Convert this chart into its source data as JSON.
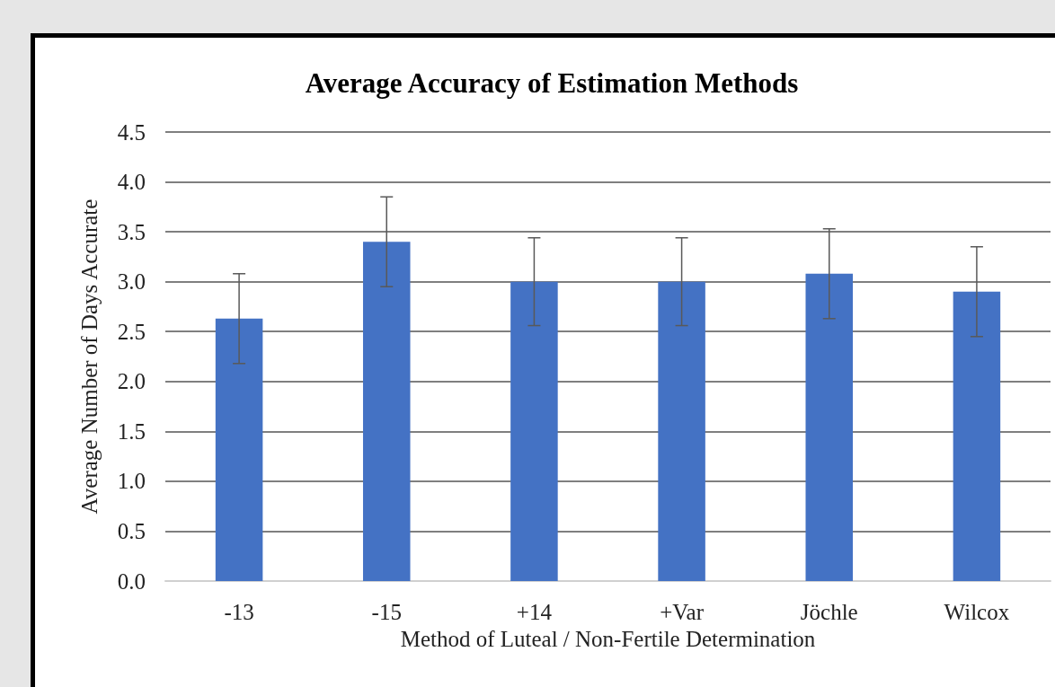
{
  "chart_data": {
    "type": "bar",
    "title": "Average Accuracy of Estimation Methods",
    "xlabel": "Method of Luteal / Non-Fertile Determination",
    "ylabel": "Average Number of Days Accurate",
    "categories": [
      "-13",
      "-15",
      "+14",
      "+Var",
      "Jöchle",
      "Wilcox"
    ],
    "values": [
      2.63,
      3.4,
      3.0,
      3.0,
      3.08,
      2.9
    ],
    "errors": [
      0.45,
      0.45,
      0.44,
      0.44,
      0.45,
      0.45
    ],
    "color": "#4472c4",
    "ylim": [
      0,
      4.5
    ],
    "yticks": [
      {
        "value": 0,
        "label": "0.0"
      },
      {
        "value": 0.5,
        "label": "0.5"
      },
      {
        "value": 1,
        "label": "1.0"
      },
      {
        "value": 1.5,
        "label": "1.5"
      },
      {
        "value": 2,
        "label": "2.0"
      },
      {
        "value": 2.5,
        "label": "2.5"
      },
      {
        "value": 3,
        "label": "3.0"
      },
      {
        "value": 3.5,
        "label": "3.5"
      },
      {
        "value": 4,
        "label": "4.0"
      },
      {
        "value": 4.5,
        "label": "4.5"
      }
    ],
    "grid": "y"
  }
}
